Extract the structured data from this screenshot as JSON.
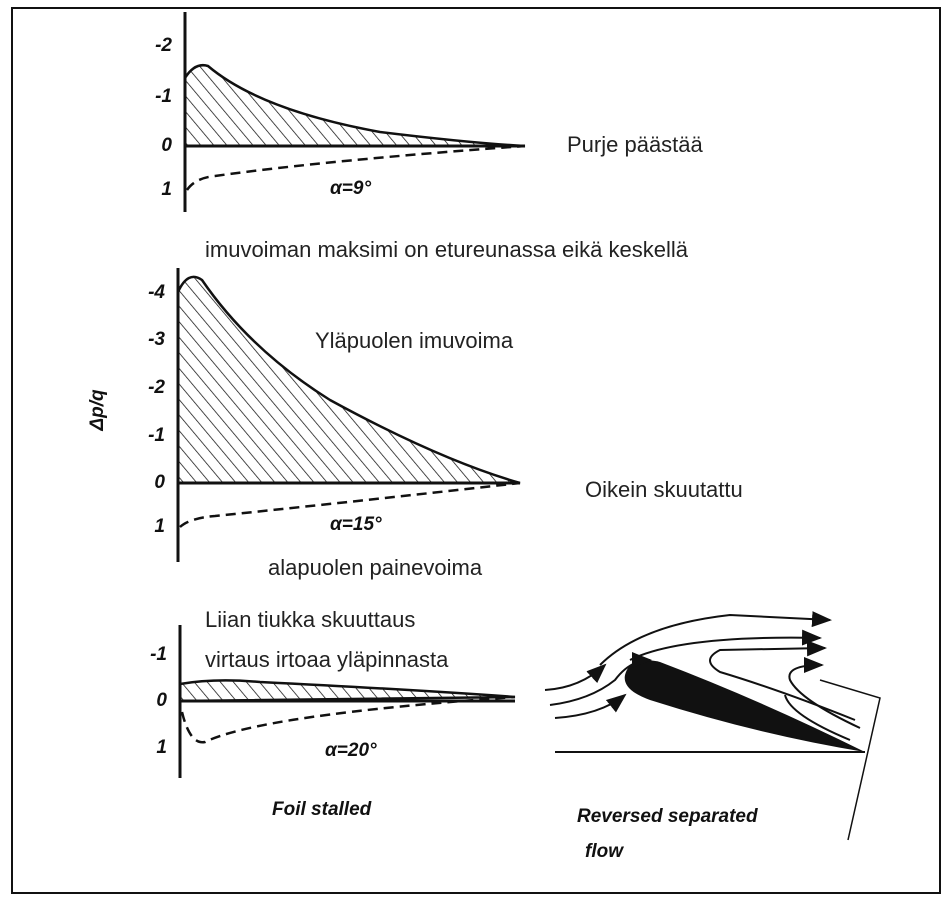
{
  "y_axis_label": "Δp/q",
  "panels": [
    {
      "ticks": [
        "-2",
        "-1",
        "0",
        "1"
      ],
      "alpha_label": "α=9°"
    },
    {
      "ticks": [
        "-4",
        "-3",
        "-2",
        "-1",
        "0",
        "1"
      ],
      "alpha_label": "α=15°"
    },
    {
      "ticks": [
        "-1",
        "0",
        "1"
      ],
      "alpha_label": "α=20°"
    }
  ],
  "annotations": {
    "release": "Purje päästää",
    "max_suction": "imuvoiman maksimi on etureunassa eikä keskellä",
    "upper_suction": "Yläpuolen imuvoima",
    "correct_trim": "Oikein skuutattu",
    "lower_pressure": "alapuolen painevoima",
    "too_tight": "Liian tiukka skuuttaus",
    "separation": "virtaus irtoaa yläpinnasta"
  },
  "captions": {
    "foil_stalled": "Foil stalled",
    "reversed_1": "Reversed separated",
    "reversed_2": "flow"
  }
}
